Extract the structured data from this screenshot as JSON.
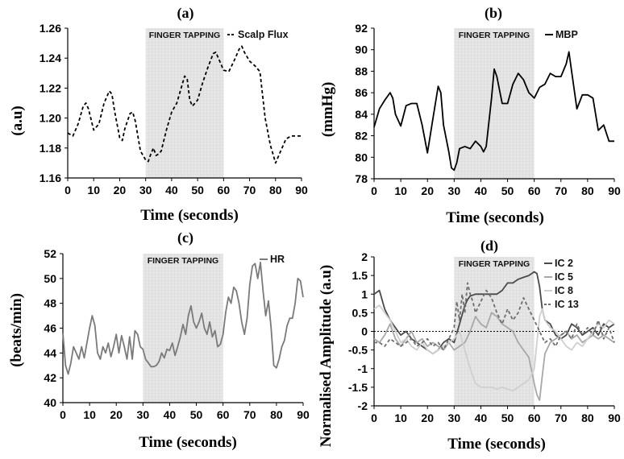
{
  "chart_data": [
    {
      "panel_label": "(a)",
      "type": "line",
      "xlabel": "Time (seconds)",
      "ylabel": "(a.u)",
      "xlim": [
        0,
        90
      ],
      "ylim": [
        1.16,
        1.26
      ],
      "xticks": [
        "0",
        "10",
        "20",
        "30",
        "40",
        "50",
        "60",
        "70",
        "80",
        "90"
      ],
      "yticks": [
        "1.16",
        "1.18",
        "1.20",
        "1.22",
        "1.24",
        "1.26"
      ],
      "shaded_region": {
        "x": [
          30,
          60
        ],
        "label": "FINGER TAPPING"
      },
      "legend_position": "top-right",
      "series": [
        {
          "name": "Scalp Flux",
          "color": "#000000",
          "dash": "4,3",
          "x": [
            0,
            2,
            4,
            6,
            7,
            8,
            10,
            12,
            14,
            16,
            17,
            18,
            20,
            21,
            22,
            24,
            25,
            26,
            28,
            30,
            31,
            32,
            33,
            34,
            35,
            36,
            38,
            40,
            42,
            44,
            45,
            46,
            47,
            48,
            50,
            52,
            54,
            56,
            57,
            58,
            60,
            62,
            64,
            66,
            67,
            68,
            70,
            72,
            74,
            76,
            78,
            79,
            80,
            82,
            84,
            86,
            88,
            90
          ],
          "y": [
            1.19,
            1.188,
            1.196,
            1.208,
            1.21,
            1.206,
            1.192,
            1.196,
            1.21,
            1.218,
            1.216,
            1.205,
            1.187,
            1.185,
            1.193,
            1.203,
            1.204,
            1.198,
            1.178,
            1.172,
            1.171,
            1.176,
            1.18,
            1.175,
            1.176,
            1.178,
            1.192,
            1.204,
            1.21,
            1.222,
            1.228,
            1.226,
            1.212,
            1.208,
            1.212,
            1.224,
            1.234,
            1.243,
            1.244,
            1.24,
            1.232,
            1.231,
            1.238,
            1.246,
            1.248,
            1.244,
            1.238,
            1.235,
            1.231,
            1.2,
            1.182,
            1.176,
            1.17,
            1.178,
            1.186,
            1.188,
            1.188,
            1.188
          ]
        }
      ]
    },
    {
      "panel_label": "(b)",
      "type": "line",
      "xlabel": "Time (seconds)",
      "ylabel": "(mmHg)",
      "xlim": [
        0,
        90
      ],
      "ylim": [
        78,
        92
      ],
      "xticks": [
        "0",
        "10",
        "20",
        "30",
        "40",
        "50",
        "60",
        "70",
        "80",
        "90"
      ],
      "yticks": [
        "78",
        "80",
        "82",
        "84",
        "86",
        "88",
        "90",
        "92"
      ],
      "shaded_region": {
        "x": [
          30,
          60
        ],
        "label": "FINGER TAPPING"
      },
      "legend_position": "top-right",
      "series": [
        {
          "name": "MBP",
          "color": "#000000",
          "dash": "",
          "x": [
            0,
            2,
            4,
            6,
            7,
            8,
            10,
            12,
            14,
            16,
            18,
            20,
            22,
            24,
            25,
            26,
            28,
            29,
            30,
            31,
            32,
            34,
            36,
            38,
            40,
            41,
            42,
            44,
            45,
            46,
            48,
            50,
            52,
            54,
            56,
            58,
            60,
            62,
            64,
            66,
            68,
            70,
            72,
            73,
            74,
            76,
            78,
            80,
            82,
            84,
            86,
            88,
            90
          ],
          "y": [
            82.8,
            84.5,
            85.3,
            86,
            85.5,
            84,
            82.9,
            84.8,
            85,
            85,
            83,
            80.4,
            83.5,
            86.6,
            86,
            83,
            80.5,
            79,
            78.8,
            79.5,
            80.8,
            81,
            80.8,
            81.5,
            81,
            80.5,
            81,
            85.5,
            88.2,
            87.5,
            85,
            85,
            86.8,
            87.8,
            87.2,
            86,
            85.5,
            86.5,
            86.8,
            87.8,
            87.5,
            87.5,
            88.7,
            89.8,
            88,
            84.5,
            85.8,
            85.8,
            85.5,
            82.5,
            83,
            81.5,
            81.5
          ]
        }
      ]
    },
    {
      "panel_label": "(c)",
      "type": "line",
      "xlabel": "Time (seconds)",
      "ylabel": "(beats/min)",
      "xlim": [
        0,
        90
      ],
      "ylim": [
        40,
        52
      ],
      "xticks": [
        "0",
        "10",
        "20",
        "30",
        "40",
        "50",
        "60",
        "70",
        "80",
        "90"
      ],
      "yticks": [
        "40",
        "42",
        "44",
        "46",
        "48",
        "50",
        "52"
      ],
      "shaded_region": {
        "x": [
          30,
          60
        ],
        "label": "FINGER TAPPING"
      },
      "legend_position": "top-right",
      "series": [
        {
          "name": "HR",
          "color": "#7a7a7a",
          "dash": "",
          "x": [
            0,
            1,
            2,
            3,
            4,
            6,
            7,
            8,
            9,
            10,
            11,
            12,
            13,
            14,
            15,
            16,
            17,
            18,
            19,
            20,
            21,
            22,
            23,
            24,
            25,
            26,
            27,
            28,
            29,
            30,
            31,
            32,
            33,
            34,
            35,
            36,
            37,
            38,
            39,
            40,
            41,
            42,
            43,
            44,
            45,
            46,
            47,
            48,
            49,
            50,
            51,
            52,
            53,
            54,
            55,
            56,
            57,
            58,
            59,
            60,
            61,
            62,
            63,
            64,
            65,
            66,
            67,
            68,
            69,
            70,
            71,
            72,
            73,
            74,
            75,
            76,
            77,
            78,
            79,
            80,
            81,
            82,
            83,
            84,
            85,
            86,
            87,
            88,
            89,
            90
          ],
          "y": [
            45.6,
            43,
            42.3,
            43.2,
            44.5,
            43.5,
            44.5,
            43.6,
            44.8,
            46,
            47,
            46.2,
            44,
            43.5,
            44.5,
            44,
            44.8,
            43.7,
            44.5,
            45.5,
            44,
            45.4,
            44.5,
            43.5,
            45.3,
            43.5,
            45.8,
            45.5,
            44.5,
            44.3,
            43.5,
            43.2,
            42.9,
            42.9,
            43,
            43.3,
            44,
            43.6,
            44.3,
            44.2,
            44.8,
            43.8,
            44.5,
            45.3,
            46.3,
            45.5,
            47,
            47.8,
            46.5,
            46,
            46.5,
            47.2,
            46,
            45.5,
            46.5,
            45.3,
            45.8,
            44.5,
            44.7,
            45.5,
            47.3,
            48.5,
            48,
            49.3,
            49,
            48,
            46.5,
            45.5,
            46.8,
            49.5,
            51,
            51.2,
            50,
            51.3,
            49,
            47,
            48.2,
            46,
            43,
            42.8,
            43.5,
            44.5,
            45,
            46.2,
            46.8,
            46.8,
            48,
            50,
            49.8,
            48.5
          ]
        }
      ]
    },
    {
      "panel_label": "(d)",
      "type": "line",
      "xlabel": "Time (seconds)",
      "ylabel": "Normalised Amplitude (a.u)",
      "xlim": [
        0,
        90
      ],
      "ylim": [
        -2,
        2
      ],
      "xticks": [
        "0",
        "10",
        "20",
        "30",
        "40",
        "50",
        "60",
        "70",
        "80",
        "90"
      ],
      "yticks": [
        "-2",
        "-1.5",
        "-1",
        "-0.5",
        "0",
        "0.5",
        "1",
        "1.5",
        "2"
      ],
      "shaded_region": {
        "x": [
          30,
          60
        ],
        "label": "FINGER TAPPING"
      },
      "legend_position": "top-right",
      "series": [
        {
          "name": "IC 2",
          "color": "#4a4a4a",
          "dash": "",
          "x": [
            0,
            2,
            4,
            6,
            8,
            10,
            12,
            14,
            16,
            18,
            20,
            22,
            24,
            26,
            28,
            30,
            32,
            34,
            35,
            36,
            38,
            40,
            42,
            44,
            46,
            48,
            50,
            52,
            54,
            56,
            58,
            60,
            61,
            62,
            63,
            64,
            66,
            68,
            70,
            72,
            74,
            76,
            78,
            80,
            82,
            84,
            86,
            88,
            90
          ],
          "y": [
            1,
            1.1,
            0.6,
            0.3,
            0.1,
            -0.1,
            0,
            -0.2,
            -0.3,
            -0.4,
            -0.5,
            -0.6,
            -0.5,
            -0.3,
            -0.2,
            -0.3,
            0.2,
            0.7,
            0.85,
            0.95,
            1,
            1,
            1,
            1,
            1,
            1.1,
            1.3,
            1.3,
            1.4,
            1.45,
            1.5,
            1.6,
            1.55,
            1.2,
            0.6,
            0.3,
            0.2,
            -0.1,
            -0.2,
            -0.1,
            0.2,
            0.1,
            -0.1,
            0,
            0.1,
            -0.1,
            0.2,
            0.1,
            0.2
          ]
        },
        {
          "name": "IC 5",
          "color": "#a8a8a8",
          "dash": "",
          "x": [
            0,
            2,
            4,
            6,
            8,
            10,
            12,
            14,
            16,
            18,
            20,
            22,
            24,
            26,
            28,
            30,
            32,
            34,
            36,
            38,
            40,
            42,
            44,
            46,
            48,
            50,
            52,
            54,
            56,
            58,
            60,
            61,
            62,
            63,
            64,
            66,
            68,
            70,
            72,
            74,
            76,
            78,
            80,
            82,
            84,
            86,
            88,
            90
          ],
          "y": [
            -0.2,
            -0.3,
            -0.1,
            0.2,
            -0.2,
            -0.4,
            -0.2,
            0,
            -0.3,
            -0.2,
            -0.4,
            -0.3,
            -0.4,
            -0.5,
            -0.3,
            -0.5,
            -0.4,
            -0.3,
            0,
            0.4,
            0.2,
            0.1,
            0.5,
            0.4,
            0.2,
            0.1,
            0,
            -0.3,
            -0.5,
            -0.7,
            -1.4,
            -1.7,
            -1.85,
            -1.2,
            -0.6,
            -0.3,
            -0.2,
            -0.1,
            0,
            -0.2,
            -0.1,
            -0.3,
            -0.2,
            -0.1,
            -0.2,
            -0.1,
            -0.2,
            -0.3
          ]
        },
        {
          "name": "IC 8",
          "color": "#cfcfcf",
          "dash": "",
          "x": [
            0,
            2,
            4,
            6,
            8,
            10,
            12,
            14,
            16,
            18,
            20,
            22,
            24,
            26,
            28,
            30,
            32,
            34,
            36,
            38,
            40,
            42,
            44,
            46,
            48,
            50,
            52,
            54,
            56,
            58,
            60,
            61,
            62,
            63,
            64,
            66,
            68,
            70,
            72,
            74,
            76,
            78,
            80,
            82,
            84,
            86,
            88,
            90
          ],
          "y": [
            0.6,
            0.7,
            0.5,
            0.3,
            0,
            -0.3,
            -0.2,
            -0.4,
            -0.5,
            -0.3,
            -0.5,
            -0.6,
            -0.5,
            -0.4,
            -0.3,
            -0.2,
            0,
            -0.5,
            -1,
            -1.4,
            -1.5,
            -1.5,
            -1.5,
            -1.55,
            -1.5,
            -1.55,
            -1.6,
            -1.5,
            -1.4,
            -1.3,
            -1,
            -0.3,
            0.4,
            0.6,
            0.3,
            0.1,
            0,
            -0.2,
            -0.4,
            -0.5,
            -0.3,
            -0.4,
            -0.2,
            0,
            0.2,
            0.1,
            0.3,
            0.2
          ]
        },
        {
          "name": "IC 13",
          "color": "#6e6e6e",
          "dash": "4,3",
          "x": [
            0,
            2,
            4,
            6,
            8,
            10,
            12,
            14,
            16,
            18,
            20,
            22,
            24,
            26,
            28,
            30,
            31,
            32,
            33,
            34,
            35,
            36,
            37,
            38,
            40,
            42,
            44,
            46,
            48,
            50,
            52,
            54,
            56,
            58,
            60,
            62,
            64,
            66,
            68,
            70,
            72,
            74,
            76,
            78,
            80,
            82,
            84,
            86,
            88,
            90
          ],
          "y": [
            -0.3,
            -0.3,
            -0.4,
            -0.2,
            -0.3,
            -0.4,
            -0.3,
            -0.2,
            -0.4,
            -0.3,
            -0.2,
            -0.4,
            -0.3,
            -0.5,
            -0.2,
            0.1,
            0.8,
            0.3,
            1,
            0.5,
            1.3,
            1,
            0.8,
            0.5,
            0.8,
            1.1,
            0.9,
            0.5,
            0.2,
            0.6,
            0.3,
            0.5,
            0.9,
            0.6,
            0.3,
            0,
            -0.3,
            -0.2,
            -0.4,
            -0.1,
            0,
            -0.2,
            0.2,
            -0.1,
            0.1,
            -0.1,
            0.3,
            -0.2,
            0.1,
            -0.3
          ]
        }
      ]
    }
  ]
}
